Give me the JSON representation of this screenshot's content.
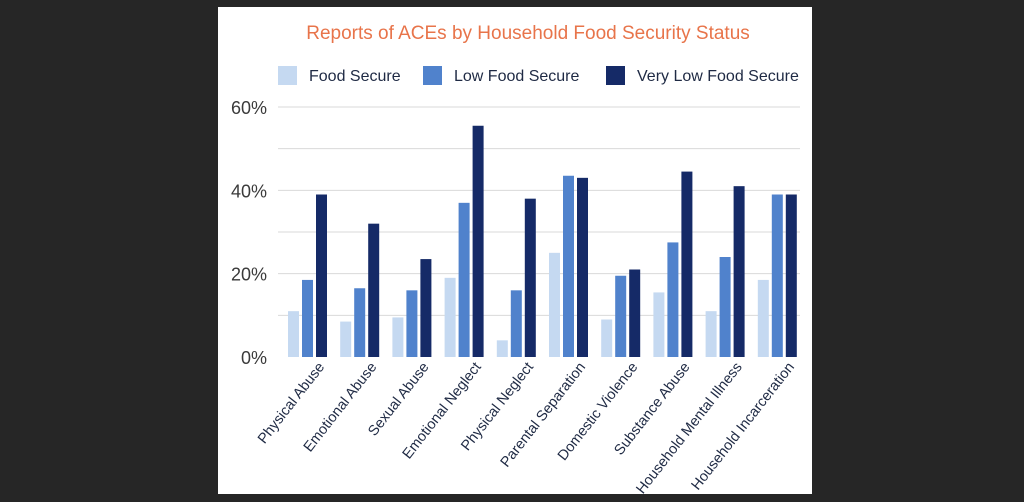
{
  "chart_data": {
    "type": "bar",
    "title": "Reports of ACEs by Household Food Security Status",
    "xlabel": "",
    "ylabel": "",
    "ylim": [
      0,
      60
    ],
    "y_ticks": [
      0,
      20,
      40,
      60
    ],
    "y_tick_labels": [
      "0%",
      "20%",
      "40%",
      "60%"
    ],
    "grid": true,
    "legend_position": "top",
    "categories": [
      "Physical Abuse",
      "Emotional Abuse",
      "Sexual Abuse",
      "Emotional Neglect",
      "Physical Neglect",
      "Parental Separation",
      "Domestic Violence",
      "Substance Abuse",
      "Household Mental Illness",
      "Household Incarceration"
    ],
    "series": [
      {
        "name": "Food Secure",
        "color": "#c5d9f1",
        "values": [
          11,
          8.5,
          9.5,
          19,
          4,
          25,
          9,
          15.5,
          11,
          18.5
        ]
      },
      {
        "name": "Low Food Secure",
        "color": "#5082cc",
        "values": [
          18.5,
          16.5,
          16,
          37,
          16,
          43.5,
          19.5,
          27.5,
          24,
          39
        ]
      },
      {
        "name": "Very Low Food Secure",
        "color": "#152a67",
        "values": [
          39,
          32,
          23.5,
          55.5,
          38,
          43,
          21,
          44.5,
          41,
          39
        ]
      }
    ]
  }
}
